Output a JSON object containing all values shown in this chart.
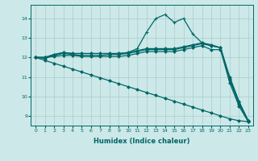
{
  "xlabel": "Humidex (Indice chaleur)",
  "xlim": [
    -0.5,
    23.5
  ],
  "ylim": [
    8.5,
    14.7
  ],
  "yticks": [
    9,
    10,
    11,
    12,
    13,
    14
  ],
  "xticks": [
    0,
    1,
    2,
    3,
    4,
    5,
    6,
    7,
    8,
    9,
    10,
    11,
    12,
    13,
    14,
    15,
    16,
    17,
    18,
    19,
    20,
    21,
    22,
    23
  ],
  "background_color": "#cce8e8",
  "grid_color": "#aacccc",
  "line_color": "#006666",
  "lines": [
    {
      "x": [
        0,
        1,
        2,
        3,
        4,
        5,
        6,
        7,
        8,
        9,
        10,
        11,
        12,
        13,
        14,
        15,
        16,
        17,
        18,
        19,
        20,
        21,
        22,
        23
      ],
      "y": [
        12.0,
        11.95,
        12.1,
        12.2,
        12.15,
        12.1,
        12.1,
        12.1,
        12.15,
        12.15,
        12.2,
        12.3,
        12.4,
        12.4,
        12.4,
        12.4,
        12.5,
        12.6,
        12.7,
        12.6,
        12.5,
        10.85,
        9.6,
        8.75
      ],
      "marker": "D",
      "markersize": 1.8,
      "linewidth": 0.9
    },
    {
      "x": [
        0,
        1,
        2,
        3,
        4,
        5,
        6,
        7,
        8,
        9,
        10,
        11,
        12,
        13,
        14,
        15,
        16,
        17,
        18,
        19,
        20,
        21,
        22,
        23
      ],
      "y": [
        12.0,
        12.0,
        12.15,
        12.25,
        12.2,
        12.2,
        12.2,
        12.2,
        12.2,
        12.2,
        12.25,
        12.35,
        12.45,
        12.45,
        12.45,
        12.45,
        12.55,
        12.65,
        12.75,
        12.65,
        12.5,
        11.0,
        9.75,
        8.75
      ],
      "marker": "D",
      "markersize": 1.8,
      "linewidth": 0.9
    },
    {
      "x": [
        0,
        1,
        2,
        3,
        4,
        5,
        6,
        7,
        8,
        9,
        10,
        11,
        12,
        13,
        14,
        15,
        16,
        17,
        18,
        19,
        20,
        21,
        22,
        23
      ],
      "y": [
        12.0,
        12.0,
        12.15,
        12.25,
        12.2,
        12.2,
        12.2,
        12.2,
        12.2,
        12.2,
        12.25,
        12.45,
        13.3,
        14.0,
        14.2,
        13.8,
        14.0,
        13.2,
        12.75,
        12.6,
        12.5,
        10.9,
        9.7,
        8.75
      ],
      "marker": "+",
      "markersize": 3.5,
      "linewidth": 0.9
    },
    {
      "x": [
        0,
        1,
        2,
        3,
        4,
        5,
        6,
        7,
        8,
        9,
        10,
        11,
        12,
        13,
        14,
        15,
        16,
        17,
        18,
        19,
        20,
        21,
        22,
        23
      ],
      "y": [
        12.0,
        12.0,
        12.05,
        12.1,
        12.1,
        12.05,
        12.05,
        12.05,
        12.05,
        12.05,
        12.1,
        12.2,
        12.3,
        12.3,
        12.3,
        12.3,
        12.4,
        12.5,
        12.6,
        12.4,
        12.4,
        10.7,
        9.5,
        8.7
      ],
      "marker": "D",
      "markersize": 1.8,
      "linewidth": 0.9
    },
    {
      "x": [
        0,
        1,
        2,
        3,
        4,
        5,
        6,
        7,
        8,
        9,
        10,
        11,
        12,
        13,
        14,
        15,
        16,
        17,
        18,
        19,
        20,
        21,
        22,
        23
      ],
      "y": [
        12.0,
        11.85,
        11.7,
        11.55,
        11.4,
        11.25,
        11.1,
        10.95,
        10.8,
        10.65,
        10.5,
        10.35,
        10.2,
        10.05,
        9.9,
        9.75,
        9.6,
        9.45,
        9.3,
        9.15,
        9.0,
        8.85,
        8.75,
        8.7
      ],
      "marker": "D",
      "markersize": 1.8,
      "linewidth": 0.9
    }
  ]
}
